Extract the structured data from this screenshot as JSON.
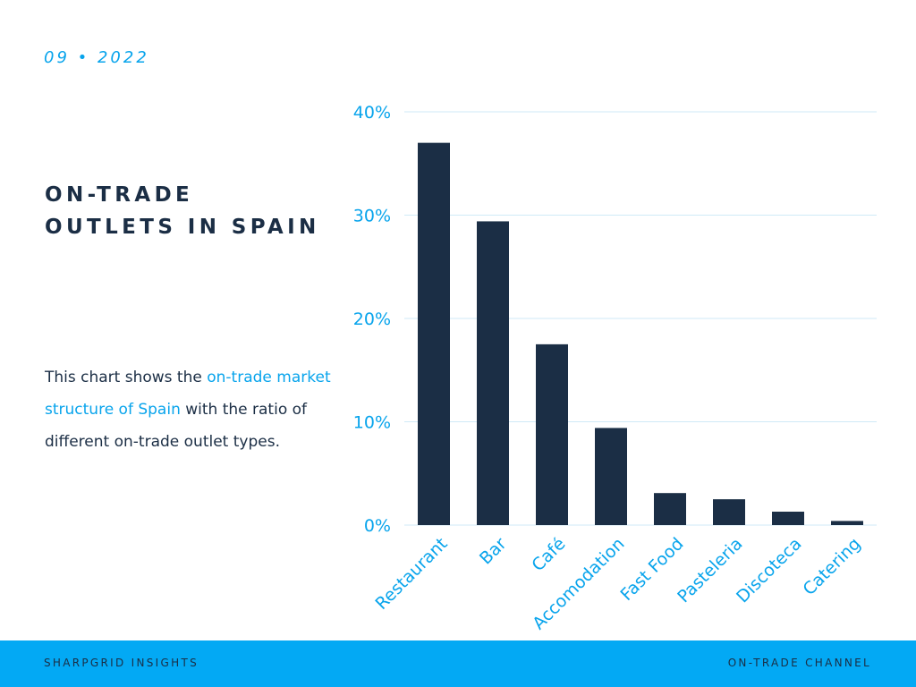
{
  "header": {
    "date": "09 • 2022"
  },
  "title": {
    "line1": "ON-TRADE",
    "line2": "OUTLETS IN SPAIN"
  },
  "description": {
    "pre": "This chart shows the ",
    "highlight": "on-trade market structure of Spain",
    "post": " with the ratio of different on-trade outlet types."
  },
  "colors": {
    "accent": "#08a4ec",
    "bar": "#1b2e45",
    "footer_bg": "#03a9f4",
    "grid": "#cfeaf7"
  },
  "footer": {
    "left": "SHARPGRID INSIGHTS",
    "right": "ON-TRADE CHANNEL"
  },
  "chart_data": {
    "type": "bar",
    "title": "",
    "xlabel": "",
    "ylabel": "",
    "categories": [
      "Restaurant",
      "Bar",
      "Café",
      "Accomodation",
      "Fast Food",
      "Pasteleria",
      "Discoteca",
      "Catering"
    ],
    "values": [
      37.0,
      29.4,
      17.5,
      9.4,
      3.1,
      2.5,
      1.3,
      0.4
    ],
    "ylim": [
      0,
      40
    ],
    "yticks": [
      0,
      10,
      20,
      30,
      40
    ],
    "ytick_labels": [
      "0%",
      "10%",
      "20%",
      "30%",
      "40%"
    ],
    "grid": true,
    "legend": "none"
  }
}
